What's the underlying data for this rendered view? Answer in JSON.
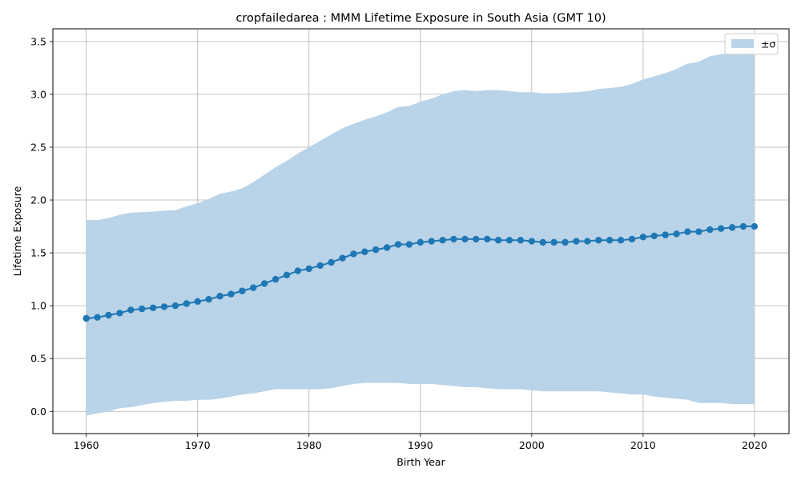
{
  "chart_data": {
    "type": "line",
    "title": "cropfailedarea : MMM Lifetime Exposure in South Asia (GMT 10)",
    "xlabel": "Birth Year",
    "ylabel": "Lifetime Exposure",
    "xlim": [
      1957,
      2023.1
    ],
    "ylim": [
      -0.21,
      3.62
    ],
    "xticks": [
      1960,
      1970,
      1980,
      1990,
      2000,
      2010,
      2020
    ],
    "yticks": [
      0.0,
      0.5,
      1.0,
      1.5,
      2.0,
      2.5,
      3.0,
      3.5
    ],
    "grid": true,
    "legend_position": "upper-right",
    "legend_label": "±σ",
    "line_color": "#1f77b4",
    "band_color": "#b9d3e8",
    "x": [
      1960,
      1961,
      1962,
      1963,
      1964,
      1965,
      1966,
      1967,
      1968,
      1969,
      1970,
      1971,
      1972,
      1973,
      1974,
      1975,
      1976,
      1977,
      1978,
      1979,
      1980,
      1981,
      1982,
      1983,
      1984,
      1985,
      1986,
      1987,
      1988,
      1989,
      1990,
      1991,
      1992,
      1993,
      1994,
      1995,
      1996,
      1997,
      1998,
      1999,
      2000,
      2001,
      2002,
      2003,
      2004,
      2005,
      2006,
      2007,
      2008,
      2009,
      2010,
      2011,
      2012,
      2013,
      2014,
      2015,
      2016,
      2017,
      2018,
      2019,
      2020
    ],
    "series": [
      {
        "values": [
          0.88,
          0.89,
          0.91,
          0.93,
          0.96,
          0.97,
          0.98,
          0.99,
          1.0,
          1.02,
          1.04,
          1.06,
          1.09,
          1.11,
          1.14,
          1.17,
          1.21,
          1.25,
          1.29,
          1.33,
          1.35,
          1.38,
          1.41,
          1.45,
          1.49,
          1.51,
          1.53,
          1.55,
          1.58,
          1.58,
          1.6,
          1.61,
          1.62,
          1.63,
          1.63,
          1.63,
          1.63,
          1.62,
          1.62,
          1.62,
          1.61,
          1.6,
          1.6,
          1.6,
          1.61,
          1.61,
          1.62,
          1.62,
          1.62,
          1.63,
          1.65,
          1.66,
          1.67,
          1.68,
          1.7,
          1.7,
          1.72,
          1.73,
          1.74,
          1.75,
          1.75
        ]
      }
    ],
    "band": {
      "upper": [
        1.81,
        1.81,
        1.83,
        1.86,
        1.88,
        1.885,
        1.89,
        1.9,
        1.905,
        1.94,
        1.97,
        2.01,
        2.06,
        2.08,
        2.11,
        2.17,
        2.24,
        2.31,
        2.37,
        2.44,
        2.5,
        2.56,
        2.62,
        2.68,
        2.72,
        2.76,
        2.79,
        2.83,
        2.88,
        2.89,
        2.93,
        2.96,
        3.0,
        3.03,
        3.04,
        3.03,
        3.04,
        3.04,
        3.03,
        3.02,
        3.02,
        3.01,
        3.01,
        3.015,
        3.02,
        3.03,
        3.05,
        3.06,
        3.07,
        3.1,
        3.14,
        3.17,
        3.2,
        3.24,
        3.29,
        3.31,
        3.36,
        3.38,
        3.39,
        3.4,
        3.41
      ],
      "lower": [
        -0.04,
        -0.02,
        0.0,
        0.03,
        0.04,
        0.06,
        0.08,
        0.09,
        0.1,
        0.1,
        0.11,
        0.11,
        0.12,
        0.14,
        0.16,
        0.17,
        0.19,
        0.21,
        0.21,
        0.21,
        0.21,
        0.21,
        0.22,
        0.24,
        0.26,
        0.27,
        0.27,
        0.27,
        0.27,
        0.26,
        0.26,
        0.26,
        0.25,
        0.24,
        0.23,
        0.23,
        0.22,
        0.21,
        0.21,
        0.21,
        0.2,
        0.19,
        0.19,
        0.19,
        0.19,
        0.19,
        0.19,
        0.18,
        0.17,
        0.16,
        0.16,
        0.14,
        0.13,
        0.12,
        0.11,
        0.08,
        0.08,
        0.08,
        0.07,
        0.07,
        0.07
      ]
    }
  }
}
